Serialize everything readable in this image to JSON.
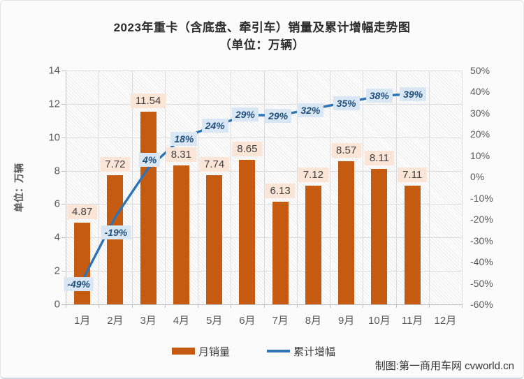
{
  "title": "2023年重卡（含底盘、牵引车）销量及累计增幅走势图",
  "subtitle": "（单位：万辆）",
  "y_axis_label": "单位：万辆",
  "legend": {
    "bar": "月销量",
    "line": "累计增幅"
  },
  "credit": "制图:第一商用车网 cvworld.cn",
  "colors": {
    "bar": "#C55A11",
    "line": "#2E74B5",
    "bar_label_bg": "#FBE5D6",
    "bar_label_text": "#404040",
    "line_label_bg": "#D9E7F5",
    "line_label_text": "#1F4E79",
    "axis_text": "#595959",
    "grid": "#DCDCDC"
  },
  "chart_data": {
    "type": "bar",
    "title": "2023年重卡（含底盘、牵引车）销量及累计增幅走势图",
    "subtitle": "（单位：万辆）",
    "categories": [
      "1月",
      "2月",
      "3月",
      "4月",
      "5月",
      "6月",
      "7月",
      "8月",
      "9月",
      "10月",
      "11月",
      "12月"
    ],
    "series": [
      {
        "name": "月销量",
        "type": "bar",
        "axis": "left",
        "values": [
          4.87,
          7.72,
          11.54,
          8.31,
          7.74,
          8.65,
          6.13,
          7.12,
          8.57,
          8.11,
          7.11,
          null
        ]
      },
      {
        "name": "累计增幅",
        "type": "line",
        "axis": "right",
        "unit": "%",
        "values": [
          -49,
          -19,
          4,
          18,
          24,
          29,
          29,
          32,
          35,
          38,
          39,
          null
        ]
      }
    ],
    "left_axis": {
      "label": "单位：万辆",
      "ticks": [
        14,
        12,
        10,
        8,
        6,
        4,
        2,
        0
      ],
      "range": [
        0,
        14
      ]
    },
    "right_axis": {
      "ticks": [
        "50%",
        "40%",
        "30%",
        "20%",
        "10%",
        "0%",
        "-10%",
        "-20%",
        "-30%",
        "-40%",
        "-50%",
        "-60%"
      ],
      "range": [
        -60,
        50
      ]
    },
    "grid": true,
    "legend_position": "bottom"
  }
}
